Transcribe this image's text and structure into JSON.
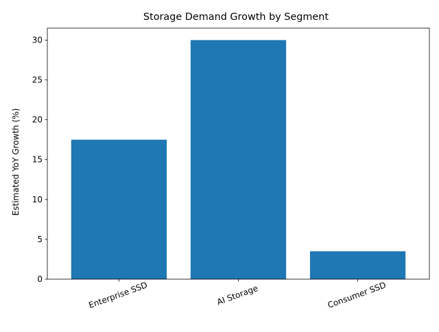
{
  "colors": {
    "bar": "#1f77b4",
    "axis": "#000000",
    "background": "#ffffff"
  },
  "chart_data": {
    "type": "bar",
    "title": "Storage Demand Growth by Segment",
    "xlabel": "",
    "ylabel": "Estimated YoY Growth (%)",
    "categories": [
      "Enterprise SSD",
      "AI Storage",
      "Consumer SSD"
    ],
    "values": [
      17.5,
      30,
      3.5
    ],
    "ylim": [
      0,
      31.5
    ],
    "yticks": [
      0,
      5,
      10,
      15,
      20,
      25,
      30
    ],
    "grid": false,
    "legend": false
  }
}
